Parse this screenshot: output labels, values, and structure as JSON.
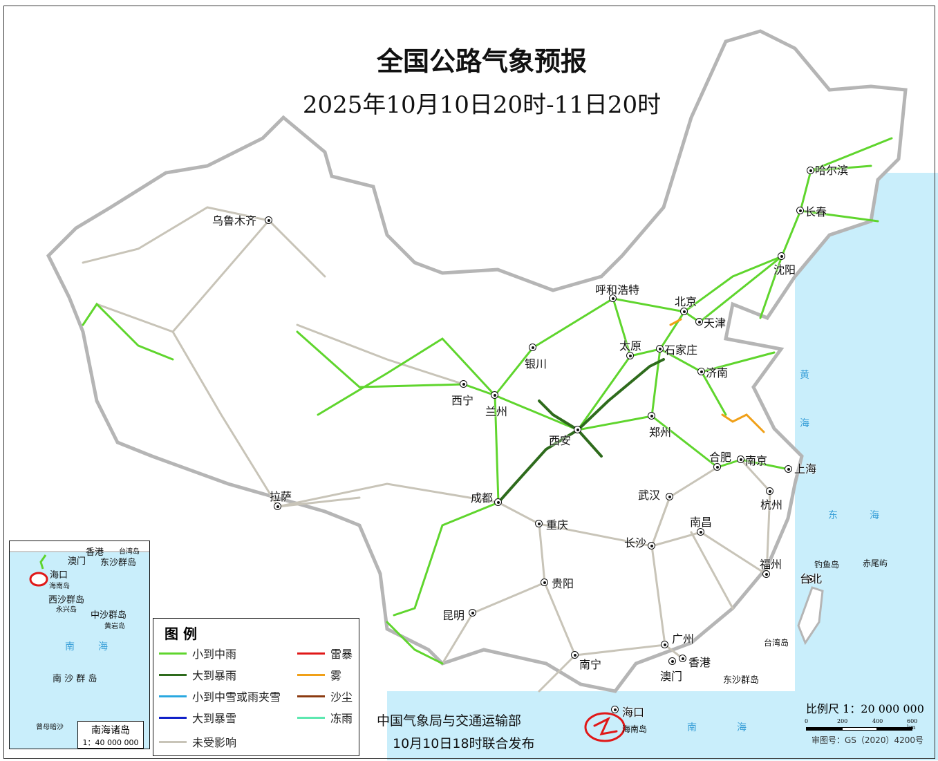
{
  "title": "全国公路气象预报",
  "subtitle": "2025年10月10日20时-11日20时",
  "colors": {
    "light_rain": "#5fd52d",
    "heavy_rain": "#2e6b1c",
    "light_snow": "#29a8e0",
    "heavy_snow": "#1020c8",
    "thunderstorm": "#e01818",
    "fog": "#f0a018",
    "dust": "#8b3a10",
    "freezing_rain": "#5de8b0",
    "unaffected": "#c8c4b8",
    "sea": "#c9eefb"
  },
  "cities": [
    {
      "name": "乌鲁木齐"
    },
    {
      "name": "哈尔滨"
    },
    {
      "name": "长春"
    },
    {
      "name": "沈阳"
    },
    {
      "name": "呼和浩特"
    },
    {
      "name": "北京"
    },
    {
      "name": "天津"
    },
    {
      "name": "太原"
    },
    {
      "name": "石家庄"
    },
    {
      "name": "济南"
    },
    {
      "name": "银川"
    },
    {
      "name": "西宁"
    },
    {
      "name": "兰州"
    },
    {
      "name": "西安"
    },
    {
      "name": "郑州"
    },
    {
      "name": "合肥"
    },
    {
      "name": "南京"
    },
    {
      "name": "上海"
    },
    {
      "name": "杭州"
    },
    {
      "name": "武汉"
    },
    {
      "name": "拉萨"
    },
    {
      "name": "成都"
    },
    {
      "name": "重庆"
    },
    {
      "name": "南昌"
    },
    {
      "name": "长沙"
    },
    {
      "name": "福州"
    },
    {
      "name": "台北"
    },
    {
      "name": "贵阳"
    },
    {
      "name": "昆明"
    },
    {
      "name": "广州"
    },
    {
      "name": "南宁"
    },
    {
      "name": "香港"
    },
    {
      "name": "澳门"
    },
    {
      "name": "海口"
    }
  ],
  "places": {
    "diaoyu": "钓鱼岛",
    "chiwei": "赤尾屿",
    "taiwan": "台湾岛",
    "dongsha": "东沙群岛",
    "hainan": "海南岛",
    "nan": "南",
    "hai": "海",
    "huang": "黄",
    "dong": "东"
  },
  "inset": {
    "hk": "香港",
    "taiwan": "台湾岛",
    "macau": "澳门",
    "dongsha": "东沙群岛",
    "haikou": "海口",
    "hainan": "海南岛",
    "xisha": "西沙群岛",
    "yongxing": "永兴岛",
    "zhongsha": "中沙群岛",
    "huangyan": "黄岩岛",
    "nan": "南",
    "hai": "海",
    "nansha": "南 沙 群 岛",
    "zengmu": "曾母暗沙",
    "title": "南海诸岛",
    "scale": "1：40 000 000"
  },
  "legend": {
    "title": "图 例",
    "items": [
      "小到中雨",
      "大到暴雨",
      "小到中雪或雨夹雪",
      "大到暴雪",
      "未受影响",
      "雷暴",
      "雾",
      "沙尘",
      "冻雨"
    ]
  },
  "footer": {
    "line1": "中国气象局与交通运输部",
    "line2": "10月10日18时联合发布"
  },
  "scale": {
    "label": "比例尺 1：20 000 000",
    "ticks": [
      "0",
      "200",
      "400",
      "600 km"
    ],
    "approval": "审图号：GS（2020）4200号"
  }
}
